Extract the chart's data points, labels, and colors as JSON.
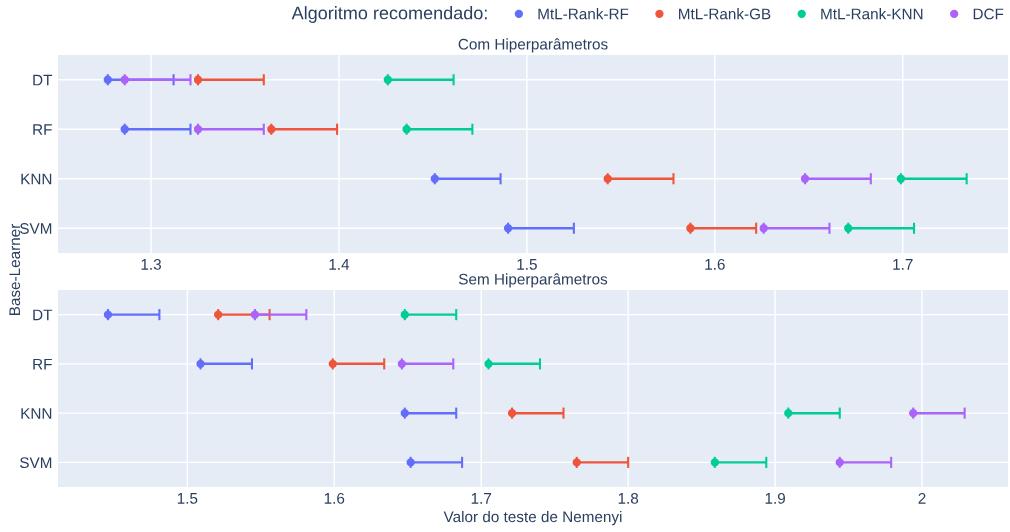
{
  "chart_data": [
    {
      "type": "scatter",
      "title": "Com Hiperparâmetros",
      "ylabel": "Base-Learner",
      "legend_title": "Algoritmo recomendado:",
      "legend": "top right",
      "grid": true,
      "marker": "circle",
      "orientation": "horizontal",
      "categories": [
        "DT",
        "RF",
        "KNN",
        "SVM"
      ],
      "xlim": [
        1.2505,
        1.756
      ],
      "xticks": [
        1.3,
        1.4,
        1.5,
        1.6,
        1.7
      ],
      "series": [
        {
          "name": "MtL-Rank-RF",
          "color": "#636efa",
          "values": [
            1.277,
            1.286,
            1.451,
            1.49
          ],
          "errors": [
            [
              1.277,
              1.312
            ],
            [
              1.286,
              1.321
            ],
            [
              1.451,
              1.486
            ],
            [
              1.49,
              1.525
            ]
          ]
        },
        {
          "name": "MtL-Rank-GB",
          "color": "#ef553b",
          "values": [
            1.325,
            1.364,
            1.543,
            1.587
          ],
          "errors": [
            [
              1.325,
              1.36
            ],
            [
              1.364,
              1.399
            ],
            [
              1.543,
              1.578
            ],
            [
              1.587,
              1.622
            ]
          ]
        },
        {
          "name": "MtL-Rank-KNN",
          "color": "#00cc96",
          "values": [
            1.426,
            1.436,
            1.699,
            1.671
          ],
          "errors": [
            [
              1.426,
              1.461
            ],
            [
              1.436,
              1.471
            ],
            [
              1.699,
              1.734
            ],
            [
              1.671,
              1.706
            ]
          ]
        },
        {
          "name": "DCF",
          "color": "#ab63fa",
          "values": [
            1.286,
            1.325,
            1.648,
            1.626
          ],
          "errors": [
            [
              1.286,
              1.321
            ],
            [
              1.325,
              1.36
            ],
            [
              1.648,
              1.683
            ],
            [
              1.626,
              1.661
            ]
          ]
        }
      ]
    },
    {
      "type": "scatter",
      "title": "Sem Hiperparâmetros",
      "xlabel": "Valor do teste de Nemenyi",
      "grid": true,
      "marker": "circle",
      "orientation": "horizontal",
      "categories": [
        "DT",
        "RF",
        "KNN",
        "SVM"
      ],
      "xlim": [
        1.412,
        2.0585
      ],
      "xticks": [
        1.5,
        1.6,
        1.7,
        1.8,
        1.9,
        2
      ],
      "series": [
        {
          "color": "#636efa",
          "values": [
            1.446,
            1.509,
            1.648,
            1.652
          ],
          "errors": [
            [
              1.446,
              1.481
            ],
            [
              1.509,
              1.544
            ],
            [
              1.648,
              1.683
            ],
            [
              1.652,
              1.687
            ]
          ]
        },
        {
          "color": "#ef553b",
          "values": [
            1.521,
            1.599,
            1.721,
            1.765
          ],
          "errors": [
            [
              1.521,
              1.556
            ],
            [
              1.599,
              1.634
            ],
            [
              1.721,
              1.756
            ],
            [
              1.765,
              1.8
            ]
          ]
        },
        {
          "color": "#00cc96",
          "values": [
            1.648,
            1.705,
            1.909,
            1.859
          ],
          "errors": [
            [
              1.648,
              1.683
            ],
            [
              1.705,
              1.74
            ],
            [
              1.909,
              1.944
            ],
            [
              1.859,
              1.894
            ]
          ]
        },
        {
          "color": "#ab63fa",
          "values": [
            1.546,
            1.646,
            1.994,
            1.944
          ],
          "errors": [
            [
              1.546,
              1.581
            ],
            [
              1.646,
              1.681
            ],
            [
              1.994,
              2.029
            ],
            [
              1.944,
              1.979
            ]
          ]
        }
      ]
    }
  ]
}
